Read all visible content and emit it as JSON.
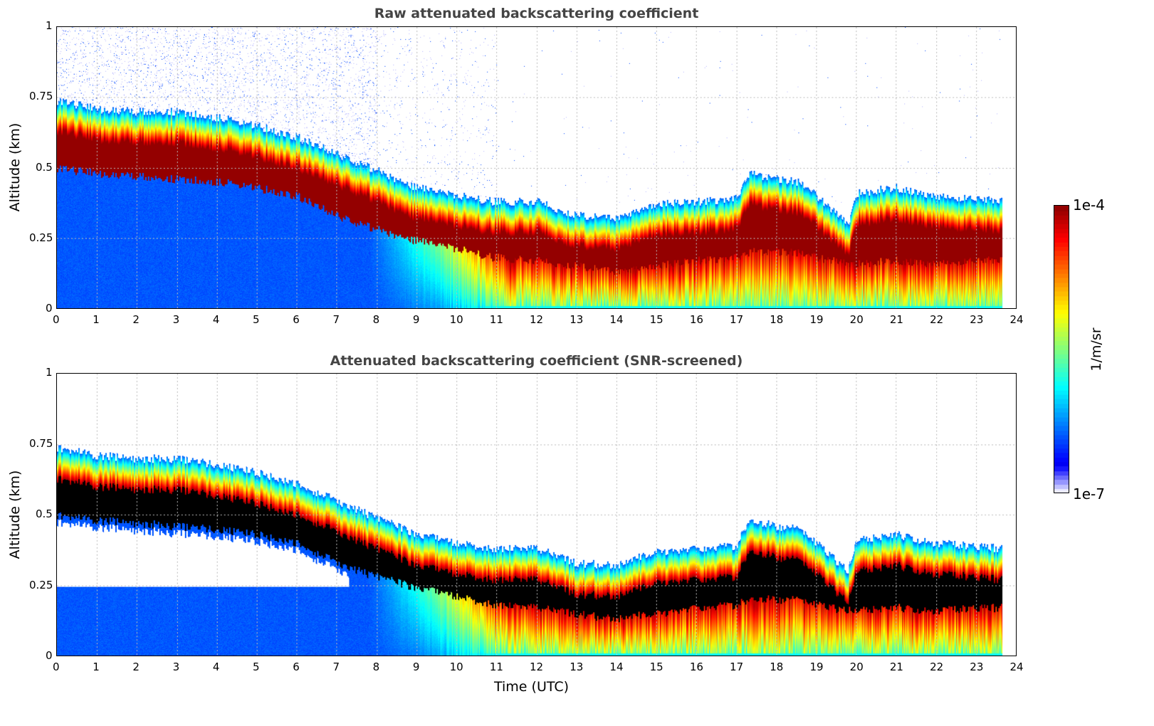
{
  "chart_data": [
    {
      "type": "heatmap",
      "title": "Raw attenuated backscattering coefficient",
      "xlabel": "",
      "ylabel": "Altitude (km)",
      "xlim": [
        0,
        24
      ],
      "ylim": [
        0,
        1
      ],
      "xticks": [
        "0",
        "1",
        "2",
        "3",
        "4",
        "5",
        "6",
        "7",
        "8",
        "9",
        "10",
        "11",
        "12",
        "13",
        "14",
        "15",
        "16",
        "17",
        "18",
        "19",
        "20",
        "21",
        "22",
        "23",
        "24"
      ],
      "yticks": [
        "0",
        "0.25",
        "0.5",
        "0.75",
        "1"
      ],
      "grid": true,
      "variant": "raw"
    },
    {
      "type": "heatmap",
      "title": "Attenuated backscattering coefficient (SNR-screened)",
      "xlabel": "Time (UTC)",
      "ylabel": "Altitude (km)",
      "xlim": [
        0,
        24
      ],
      "ylim": [
        0,
        1
      ],
      "xticks": [
        "0",
        "1",
        "2",
        "3",
        "4",
        "5",
        "6",
        "7",
        "8",
        "9",
        "10",
        "11",
        "12",
        "13",
        "14",
        "15",
        "16",
        "17",
        "18",
        "19",
        "20",
        "21",
        "22",
        "23",
        "24"
      ],
      "yticks": [
        "0",
        "0.25",
        "0.5",
        "0.75",
        "1"
      ],
      "grid": true,
      "variant": "screened"
    }
  ],
  "layer": {
    "time_hours": [
      0,
      1,
      2,
      3,
      4,
      5,
      6,
      7,
      8,
      9,
      10,
      11,
      12,
      13,
      14,
      15,
      16,
      17,
      17.3,
      18,
      18.6,
      19,
      19.8,
      20,
      21,
      22,
      23,
      23.65
    ],
    "cloud_top_km": [
      0.74,
      0.71,
      0.7,
      0.7,
      0.68,
      0.65,
      0.61,
      0.55,
      0.49,
      0.43,
      0.4,
      0.38,
      0.38,
      0.33,
      0.32,
      0.37,
      0.38,
      0.39,
      0.48,
      0.46,
      0.45,
      0.4,
      0.3,
      0.41,
      0.43,
      0.4,
      0.39,
      0.38
    ],
    "core_base_km": [
      0.5,
      0.48,
      0.47,
      0.46,
      0.45,
      0.43,
      0.4,
      0.33,
      0.28,
      0.24,
      0.21,
      0.18,
      0.17,
      0.15,
      0.13,
      0.15,
      0.17,
      0.18,
      0.2,
      0.2,
      0.2,
      0.18,
      0.16,
      0.16,
      0.17,
      0.16,
      0.17,
      0.17
    ],
    "data_end_hour": 23.65
  },
  "colorbar": {
    "label": "1/m/sr",
    "min_label": "1e-7",
    "max_label": "1e-4",
    "scale": "log",
    "range": [
      1e-07,
      0.0001
    ],
    "colormap": "jet"
  }
}
